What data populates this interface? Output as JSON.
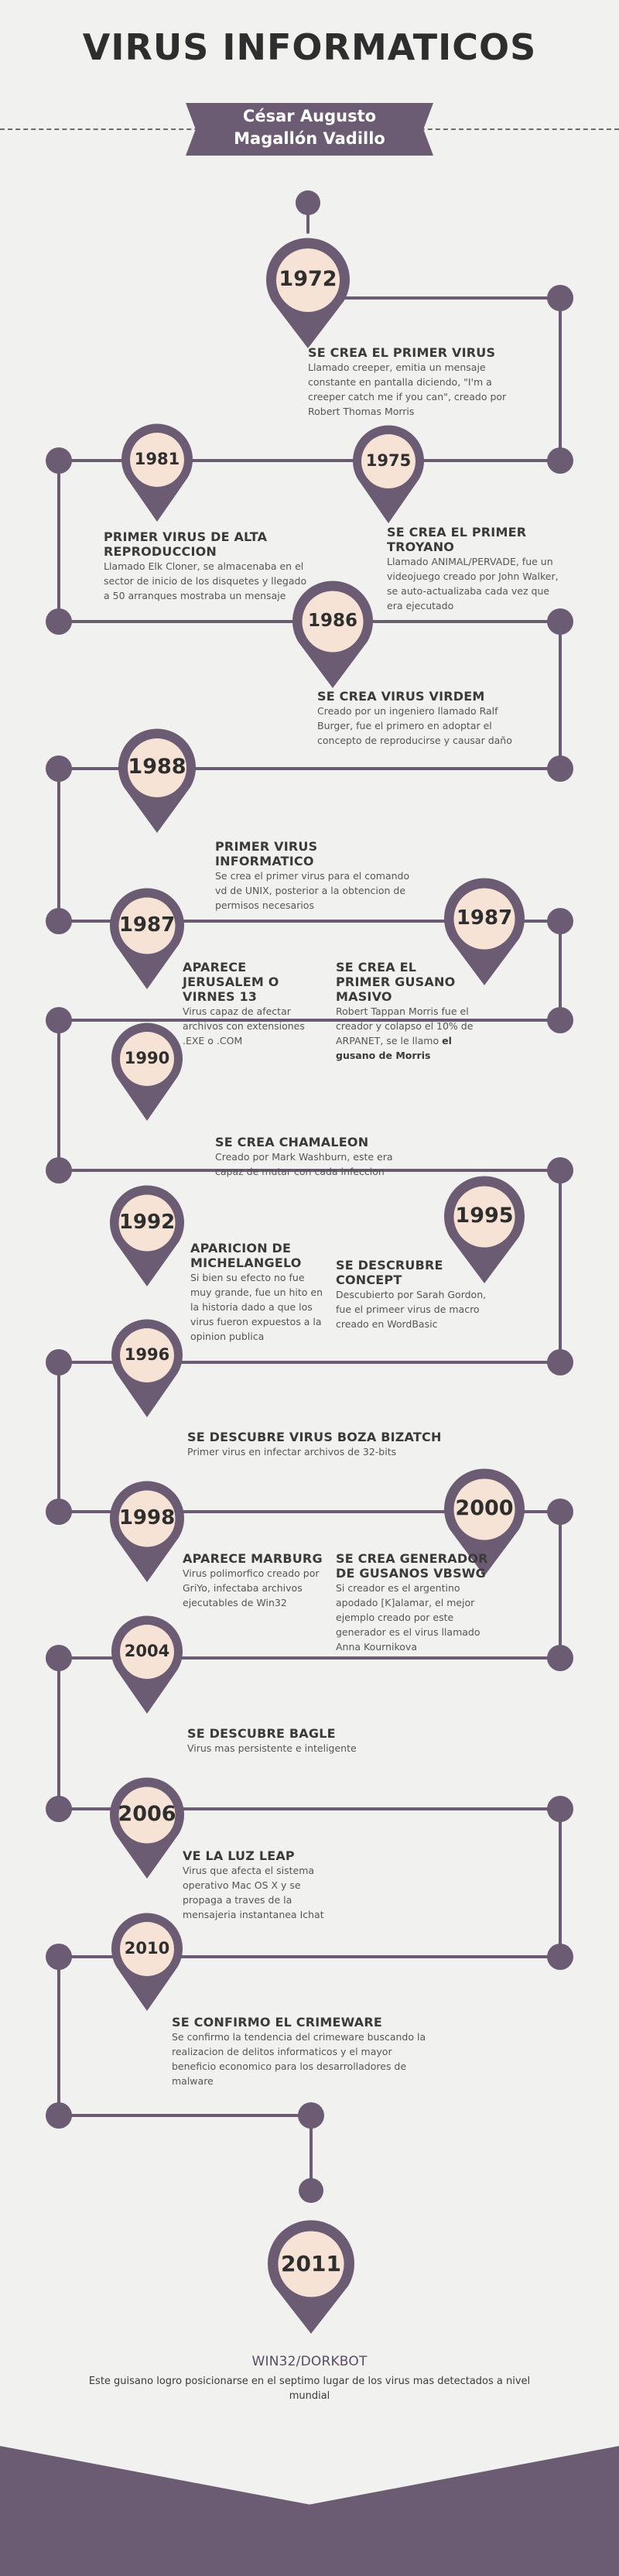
{
  "title": "VIRUS INFORMATICOS",
  "author": "César Augusto\nMagallón Vadillo",
  "colors": {
    "accent": "#6b5b73",
    "marker_fill": "#f6e3d6",
    "background": "#f1f1ef"
  },
  "events": [
    {
      "year": "1972",
      "heading": "SE CREA EL PRIMER VIRUS",
      "text": "Llamado creeper, emitia un mensaje constante en pantalla diciendo, \"I'm a creeper catch me if you can\", creado por Robert Thomas Morris"
    },
    {
      "year": "1975",
      "heading": "SE CREA EL PRIMER TROYANO",
      "text": "Llamado ANIMAL/PERVADE, fue un videojuego creado por John Walker, se auto-actualizaba cada vez que era ejecutado"
    },
    {
      "year": "1981",
      "heading": "PRIMER VIRUS DE ALTA REPRODUCCION",
      "text": "Llamado Elk Cloner, se almacenaba en el sector de inicio de los disquetes y llegado a 50 arranques mostraba un mensaje"
    },
    {
      "year": "1986",
      "heading": "SE CREA VIRUS VIRDEM",
      "text": "Creado por un ingeniero llamado Ralf Burger, fue el primero en adoptar el concepto de reproducirse y causar daño"
    },
    {
      "year": "1987",
      "heading": "PRIMER VIRUS INFORMATICO",
      "text": "Se crea el primer virus para el comando vd de UNIX, posterior a la obtencion de permisos necesarios"
    },
    {
      "year": "1987",
      "heading": "APARECE JERUSALEM O VIRNES 13",
      "text": "Virus capaz de afectar archivos con extensiones .EXE o .COM"
    },
    {
      "year": "1988",
      "heading": "SE CREA EL PRIMER GUSANO MASIVO",
      "text": "Robert Tappan Morris fue el creador y colapso el 10% de ARPANET, se le llamo",
      "text_bold": "el gusano de Morris"
    },
    {
      "year": "1990",
      "heading": "SE CREA CHAMALEON",
      "text": "Creado por Mark Washburn, este era capaz de mutar con cada infeccion"
    },
    {
      "year": "1992",
      "heading": "APARICION DE MICHELANGELO",
      "text": "Si bien su efecto no fue muy grande, fue un hito en la historia dado a que los virus fueron expuestos a la opinion publica"
    },
    {
      "year": "1995",
      "heading": "SE DESCRUBRE CONCEPT",
      "text": "Descubierto por Sarah Gordon, fue el primeer virus de macro creado en WordBasic"
    },
    {
      "year": "1996",
      "heading": "SE DESCUBRE VIRUS BOZA BIZATCH",
      "text": "Primer virus en infectar archivos de 32-bits"
    },
    {
      "year": "1998",
      "heading": "APARECE MARBURG",
      "text": "Virus polimorfico creado por GriYo, infectaba archivos ejecutables de Win32"
    },
    {
      "year": "2000",
      "heading": "SE CREA GENERADOR DE GUSANOS VBSWG",
      "text": "Si creador es el argentino apodado [K]alamar, el mejor ejemplo creado por este generador es el virus llamado Anna Kournikova"
    },
    {
      "year": "2004",
      "heading": "SE DESCUBRE BAGLE",
      "text": "Virus mas persistente e inteligente"
    },
    {
      "year": "2006",
      "heading": "VE LA LUZ LEAP",
      "text": "Virus que afecta el sistema operativo Mac OS X y se propaga a traves de la mensajeria instantanea Ichat"
    },
    {
      "year": "2010",
      "heading": "SE CONFIRMO EL CRIMEWARE",
      "text": "Se confirmo la tendencia del crimeware buscando la realizacion de delitos informaticos y el mayor beneficio economico para los desarrolladores de malware"
    },
    {
      "year": "2011",
      "heading": "WIN32/DORKBOT",
      "text": "Este guisano logro posicionarse en el septimo lugar de los virus mas detectados a nivel mundial"
    }
  ]
}
